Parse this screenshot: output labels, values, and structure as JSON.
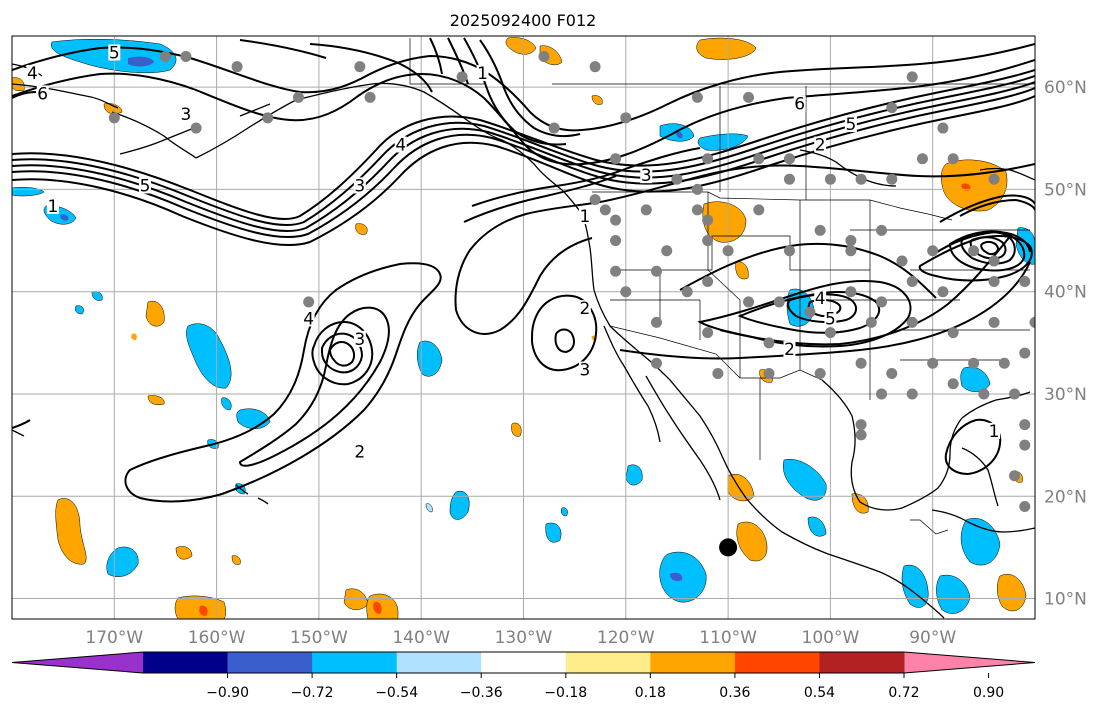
{
  "map": {
    "title": "2025092400 F012",
    "projection": "PlateCarree",
    "extent": {
      "lon_min": -180,
      "lon_max": -80,
      "lat_min": 8,
      "lat_max": 65
    },
    "gridlines": true,
    "lon_ticks": [
      {
        "lon": -170,
        "label": "170°W"
      },
      {
        "lon": -160,
        "label": "160°W"
      },
      {
        "lon": -150,
        "label": "150°W"
      },
      {
        "lon": -140,
        "label": "140°W"
      },
      {
        "lon": -130,
        "label": "130°W"
      },
      {
        "lon": -120,
        "label": "120°W"
      },
      {
        "lon": -110,
        "label": "110°W"
      },
      {
        "lon": -100,
        "label": "100°W"
      },
      {
        "lon": -90,
        "label": "90°W"
      }
    ],
    "lat_ticks": [
      {
        "lat": 10,
        "label": "10°N"
      },
      {
        "lat": 20,
        "label": "20°N"
      },
      {
        "lat": 30,
        "label": "30°N"
      },
      {
        "lat": 40,
        "label": "40°N"
      },
      {
        "lat": 50,
        "label": "50°N"
      },
      {
        "lat": 60,
        "label": "60°N"
      }
    ],
    "contour_labels": [
      {
        "text": "1",
        "lon": -176,
        "lat": 48
      },
      {
        "text": "5",
        "lon": -167,
        "lat": 50
      },
      {
        "text": "3",
        "lon": -163,
        "lat": 57
      },
      {
        "text": "4",
        "lon": -178,
        "lat": 61
      },
      {
        "text": "6",
        "lon": -177,
        "lat": 59
      },
      {
        "text": "5",
        "lon": -170,
        "lat": 63
      },
      {
        "text": "4",
        "lon": -142,
        "lat": 54
      },
      {
        "text": "3",
        "lon": -146,
        "lat": 50
      },
      {
        "text": "1",
        "lon": -134,
        "lat": 61
      },
      {
        "text": "4",
        "lon": -151,
        "lat": 37
      },
      {
        "text": "3",
        "lon": -146,
        "lat": 35
      },
      {
        "text": "2",
        "lon": -146,
        "lat": 24
      },
      {
        "text": "2",
        "lon": -124,
        "lat": 38
      },
      {
        "text": "3",
        "lon": -124,
        "lat": 32
      },
      {
        "text": "1",
        "lon": -124,
        "lat": 47
      },
      {
        "text": "3",
        "lon": -118,
        "lat": 51
      },
      {
        "text": "6",
        "lon": -103,
        "lat": 58
      },
      {
        "text": "5",
        "lon": -98,
        "lat": 56
      },
      {
        "text": "2",
        "lon": -101,
        "lat": 54
      },
      {
        "text": "4",
        "lon": -101,
        "lat": 39
      },
      {
        "text": "5",
        "lon": -100,
        "lat": 37
      },
      {
        "text": "2",
        "lon": -104,
        "lat": 34
      },
      {
        "text": "1",
        "lon": -84,
        "lat": 26
      }
    ],
    "large_marker": {
      "lon": -110,
      "lat": 15,
      "color": "#000000"
    },
    "station_color": "#808080",
    "stations": [
      [
        -165,
        63
      ],
      [
        -163,
        63
      ],
      [
        -158,
        62
      ],
      [
        -152,
        59
      ],
      [
        -162,
        56
      ],
      [
        -170,
        57
      ],
      [
        -155,
        57
      ],
      [
        -145,
        59
      ],
      [
        -146,
        62
      ],
      [
        -136,
        61
      ],
      [
        -128,
        63
      ],
      [
        -123,
        62
      ],
      [
        -113,
        59
      ],
      [
        -108,
        59
      ],
      [
        -120,
        57
      ],
      [
        -127,
        56
      ],
      [
        -121,
        53
      ],
      [
        -112,
        53
      ],
      [
        -107,
        53
      ],
      [
        -104,
        53
      ],
      [
        -104,
        51
      ],
      [
        -100,
        51
      ],
      [
        -97,
        51
      ],
      [
        -94,
        51
      ],
      [
        -91,
        53
      ],
      [
        -88,
        53
      ],
      [
        -89,
        56
      ],
      [
        -94,
        58
      ],
      [
        -92,
        61
      ],
      [
        -84,
        51
      ],
      [
        -115,
        51
      ],
      [
        -113,
        50
      ],
      [
        -123,
        49
      ],
      [
        -121,
        47
      ],
      [
        -118,
        48
      ],
      [
        -113,
        48
      ],
      [
        -112,
        47
      ],
      [
        -107,
        48
      ],
      [
        -101,
        46
      ],
      [
        -98,
        45
      ],
      [
        -95,
        46
      ],
      [
        -121,
        45
      ],
      [
        -116,
        44
      ],
      [
        -112,
        45
      ],
      [
        -121,
        42
      ],
      [
        -117,
        42
      ],
      [
        -110,
        44
      ],
      [
        -104,
        44
      ],
      [
        -98,
        44
      ],
      [
        -93,
        43
      ],
      [
        -90,
        44
      ],
      [
        -86,
        44
      ],
      [
        -84,
        43
      ],
      [
        -112,
        41
      ],
      [
        -114,
        40
      ],
      [
        -120,
        40
      ],
      [
        -108,
        39
      ],
      [
        -105,
        39
      ],
      [
        -102,
        38
      ],
      [
        -98,
        40
      ],
      [
        -95,
        39
      ],
      [
        -92,
        41
      ],
      [
        -89,
        40
      ],
      [
        -84,
        41
      ],
      [
        -81,
        41
      ],
      [
        -117,
        37
      ],
      [
        -112,
        36
      ],
      [
        -106,
        35
      ],
      [
        -100,
        36
      ],
      [
        -96,
        37
      ],
      [
        -92,
        37
      ],
      [
        -88,
        36
      ],
      [
        -84,
        37
      ],
      [
        -80,
        37
      ],
      [
        -117,
        33
      ],
      [
        -111,
        32
      ],
      [
        -106,
        32
      ],
      [
        -101,
        32
      ],
      [
        -97,
        33
      ],
      [
        -94,
        32
      ],
      [
        -90,
        33
      ],
      [
        -86,
        33
      ],
      [
        -83,
        33
      ],
      [
        -81,
        34
      ],
      [
        -95,
        30
      ],
      [
        -92,
        30
      ],
      [
        -88,
        31
      ],
      [
        -85,
        30
      ],
      [
        -82,
        30
      ],
      [
        -97,
        27
      ],
      [
        -97,
        26
      ],
      [
        -81,
        27
      ],
      [
        -81,
        25
      ],
      [
        -82,
        22
      ],
      [
        -81,
        19
      ],
      [
        -151,
        39
      ],
      [
        -122,
        48
      ]
    ],
    "contour_color": "#000000",
    "contour_width": 2
  },
  "colorbar": {
    "ticks": [
      "−0.90",
      "−0.72",
      "−0.54",
      "−0.36",
      "−0.18",
      "0.18",
      "0.36",
      "0.54",
      "0.72",
      "0.90"
    ],
    "colors": [
      "#9932cc",
      "#00008b",
      "#3a5fcd",
      "#00bfff",
      "#b0e2ff",
      "#ffffff",
      "#ffec8b",
      "#ffa500",
      "#ff4500",
      "#b22222",
      "#ff83a8"
    ]
  }
}
